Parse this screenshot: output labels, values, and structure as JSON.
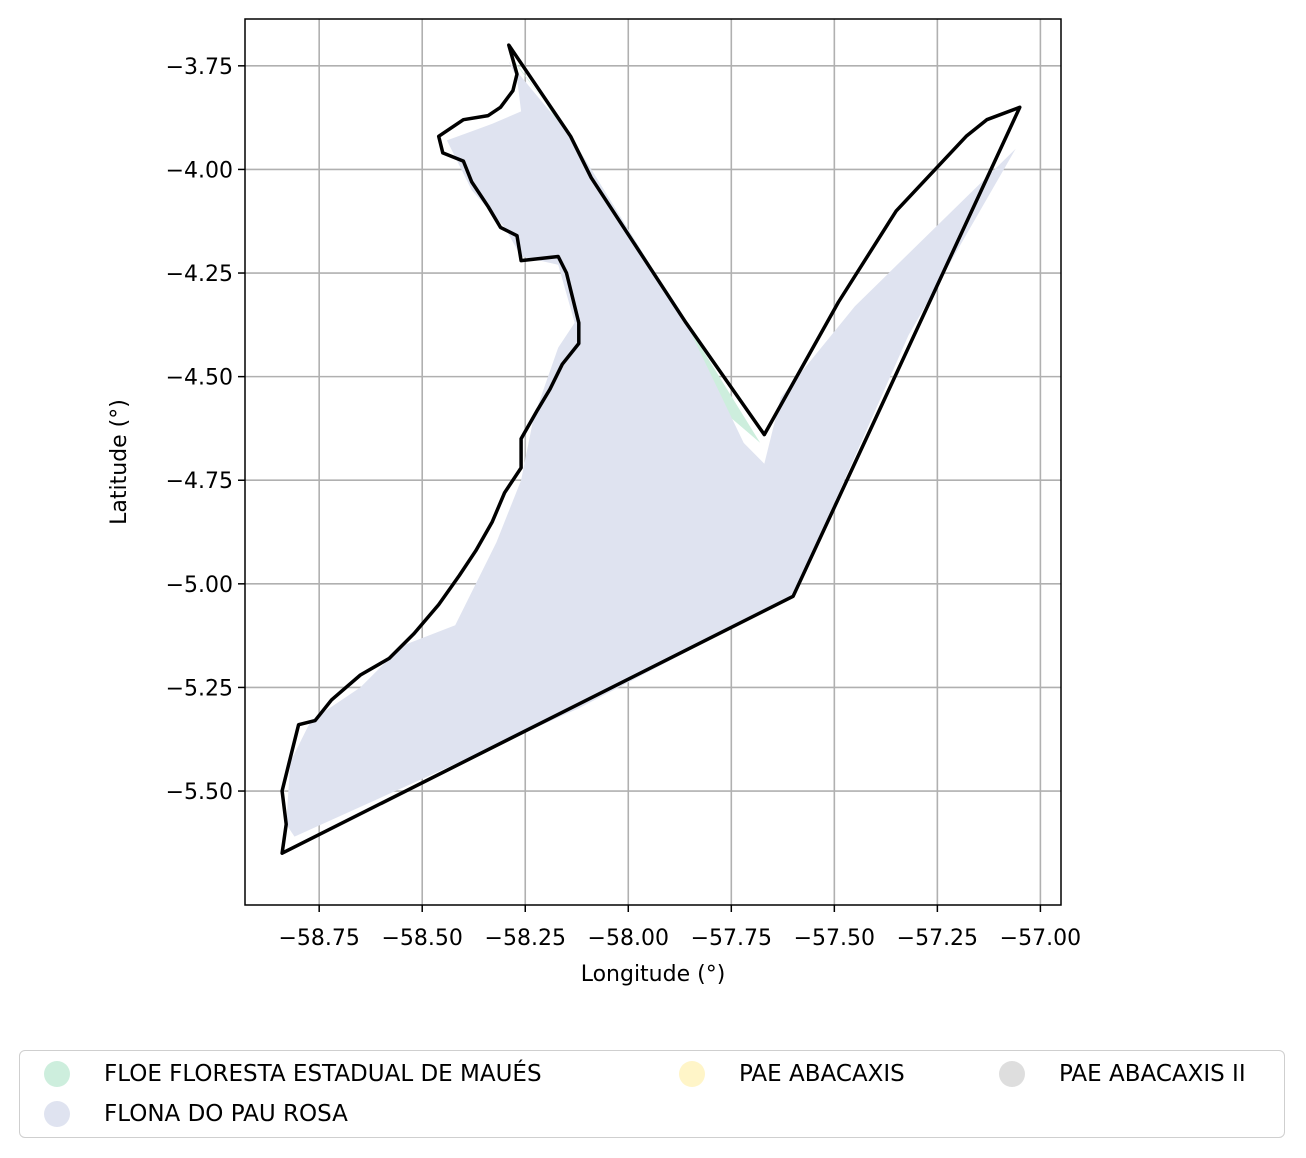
{
  "chart_data": {
    "type": "map",
    "title": "",
    "xlabel": "Longitude (°)",
    "ylabel": "Latitude (°)",
    "xlim": [
      -58.93,
      -56.95
    ],
    "ylim": [
      -5.775,
      -3.637
    ],
    "grid": true,
    "x_ticks": [
      -58.75,
      -58.5,
      -58.25,
      -58.0,
      -57.75,
      -57.5,
      -57.25,
      -57.0
    ],
    "x_tick_labels": [
      "−58.75",
      "−58.50",
      "−58.25",
      "−58.00",
      "−57.75",
      "−57.50",
      "−57.25",
      "−57.00"
    ],
    "y_ticks": [
      -3.75,
      -4.0,
      -4.25,
      -4.5,
      -4.75,
      -5.0,
      -5.25,
      -5.5
    ],
    "y_tick_labels": [
      "−3.75",
      "−4.00",
      "−4.25",
      "−4.50",
      "−4.75",
      "−5.00",
      "−5.25",
      "−5.50"
    ],
    "legend_position": "below-center",
    "legend": [
      {
        "label": "FLOE FLORESTA ESTADUAL DE MAUÉS",
        "color": "#cdeedd"
      },
      {
        "label": "PAE ABACAXIS",
        "color": "#fff5c8"
      },
      {
        "label": "PAE ABACAXIS II",
        "color": "#dedede"
      },
      {
        "label": "FLONA DO PAU ROSA",
        "color": "#dfe3f0"
      }
    ],
    "areas": [
      {
        "name": "FLOE FLORESTA ESTADUAL DE MAUÉS",
        "color": "#cdeedd",
        "coords": [
          [
            -58.29,
            -3.72
          ],
          [
            -58.14,
            -3.92
          ],
          [
            -58.09,
            -4.0
          ],
          [
            -57.86,
            -4.37
          ],
          [
            -57.68,
            -4.66
          ],
          [
            -57.75,
            -4.6
          ],
          [
            -57.98,
            -4.2
          ],
          [
            -58.2,
            -3.84
          ],
          [
            -58.27,
            -3.75
          ]
        ]
      },
      {
        "name": "FLONA DO PAU ROSA",
        "color": "#dfe3f0",
        "coords": [
          [
            -58.29,
            -3.74
          ],
          [
            -58.27,
            -3.78
          ],
          [
            -58.26,
            -3.86
          ],
          [
            -58.33,
            -3.89
          ],
          [
            -58.44,
            -3.93
          ],
          [
            -58.38,
            -4.05
          ],
          [
            -58.3,
            -4.14
          ],
          [
            -58.26,
            -4.21
          ],
          [
            -58.17,
            -4.23
          ],
          [
            -58.13,
            -4.37
          ],
          [
            -58.17,
            -4.43
          ],
          [
            -58.23,
            -4.6
          ],
          [
            -58.26,
            -4.75
          ],
          [
            -58.32,
            -4.9
          ],
          [
            -58.42,
            -5.1
          ],
          [
            -58.55,
            -5.15
          ],
          [
            -58.65,
            -5.25
          ],
          [
            -58.77,
            -5.33
          ],
          [
            -58.82,
            -5.43
          ],
          [
            -58.83,
            -5.58
          ],
          [
            -58.81,
            -5.61
          ],
          [
            -58.12,
            -5.3
          ],
          [
            -57.6,
            -5.03
          ],
          [
            -57.32,
            -4.4
          ],
          [
            -57.06,
            -3.95
          ],
          [
            -57.45,
            -4.33
          ],
          [
            -57.63,
            -4.55
          ],
          [
            -57.67,
            -4.71
          ],
          [
            -57.72,
            -4.66
          ],
          [
            -57.86,
            -4.37
          ],
          [
            -58.09,
            -4.0
          ],
          [
            -58.14,
            -3.92
          ]
        ]
      }
    ],
    "outline": [
      [
        -58.29,
        -3.7
      ],
      [
        -58.14,
        -3.92
      ],
      [
        -58.09,
        -4.02
      ],
      [
        -57.86,
        -4.37
      ],
      [
        -57.67,
        -4.64
      ],
      [
        -57.49,
        -4.32
      ],
      [
        -57.35,
        -4.1
      ],
      [
        -57.18,
        -3.92
      ],
      [
        -57.13,
        -3.88
      ],
      [
        -57.05,
        -3.85
      ],
      [
        -57.6,
        -5.03
      ],
      [
        -58.84,
        -5.65
      ],
      [
        -58.83,
        -5.58
      ],
      [
        -58.84,
        -5.5
      ],
      [
        -58.82,
        -5.42
      ],
      [
        -58.8,
        -5.34
      ],
      [
        -58.76,
        -5.33
      ],
      [
        -58.72,
        -5.28
      ],
      [
        -58.65,
        -5.22
      ],
      [
        -58.58,
        -5.18
      ],
      [
        -58.52,
        -5.12
      ],
      [
        -58.46,
        -5.05
      ],
      [
        -58.41,
        -4.98
      ],
      [
        -58.37,
        -4.92
      ],
      [
        -58.33,
        -4.85
      ],
      [
        -58.3,
        -4.78
      ],
      [
        -58.26,
        -4.72
      ],
      [
        -58.26,
        -4.65
      ],
      [
        -58.22,
        -4.58
      ],
      [
        -58.19,
        -4.53
      ],
      [
        -58.16,
        -4.47
      ],
      [
        -58.12,
        -4.42
      ],
      [
        -58.12,
        -4.37
      ],
      [
        -58.15,
        -4.25
      ],
      [
        -58.17,
        -4.21
      ],
      [
        -58.26,
        -4.22
      ],
      [
        -58.27,
        -4.16
      ],
      [
        -58.31,
        -4.14
      ],
      [
        -58.34,
        -4.09
      ],
      [
        -58.38,
        -4.03
      ],
      [
        -58.4,
        -3.98
      ],
      [
        -58.45,
        -3.96
      ],
      [
        -58.46,
        -3.92
      ],
      [
        -58.4,
        -3.88
      ],
      [
        -58.34,
        -3.87
      ],
      [
        -58.31,
        -3.85
      ],
      [
        -58.28,
        -3.81
      ],
      [
        -58.27,
        -3.77
      ],
      [
        -58.29,
        -3.7
      ]
    ]
  }
}
